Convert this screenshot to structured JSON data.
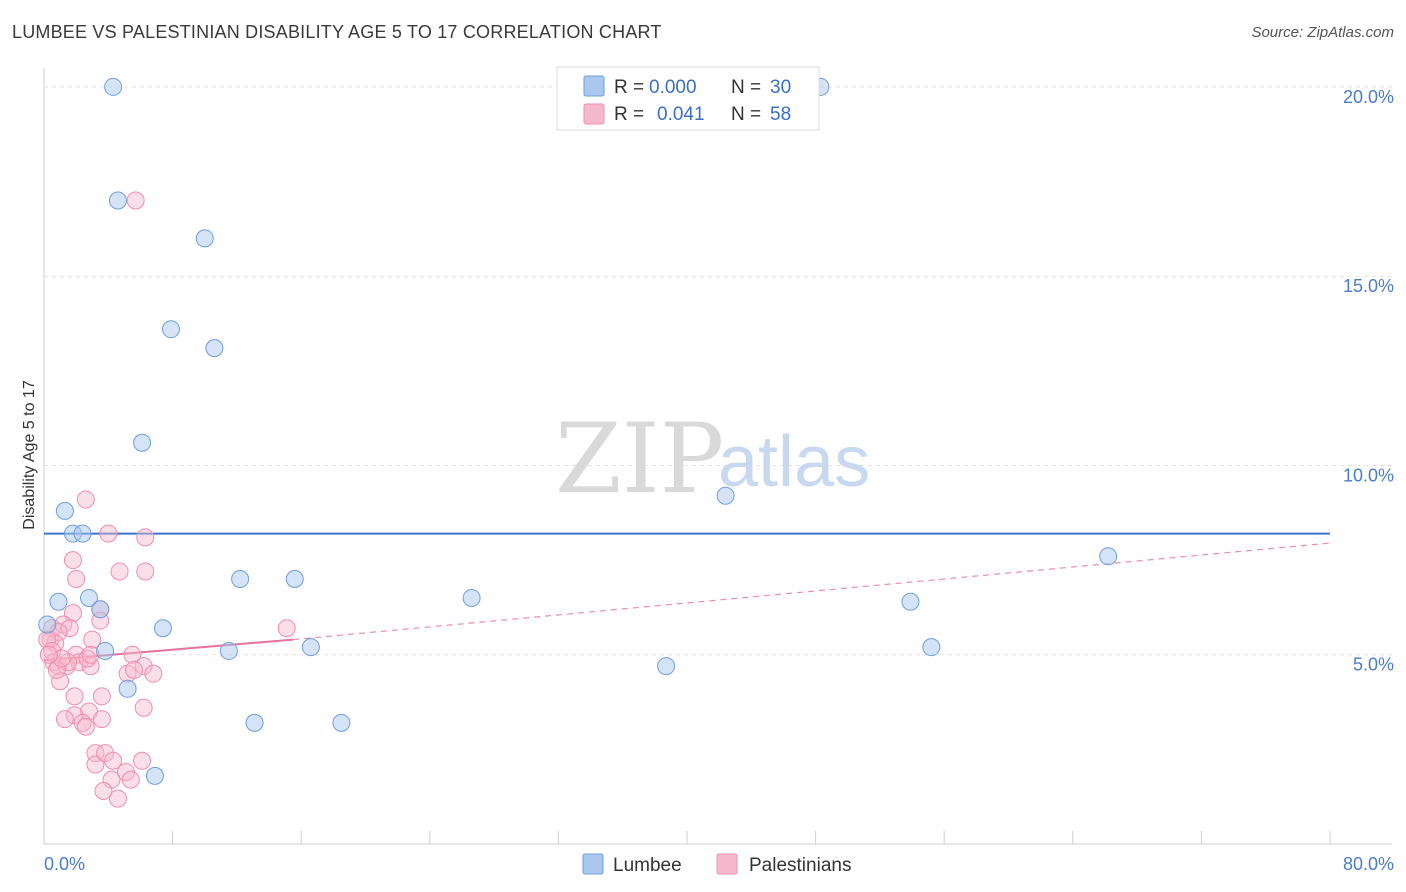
{
  "header": {
    "title": "LUMBEE VS PALESTINIAN DISABILITY AGE 5 TO 17 CORRELATION CHART",
    "source": "Source: ZipAtlas.com"
  },
  "watermark": {
    "zip": "ZIP",
    "atlas": "atlas"
  },
  "legend": {
    "rows": [
      {
        "r_label": "R =",
        "r_value": "0.000",
        "n_label": "N =",
        "n_value": "30",
        "color": "#aac8ee"
      },
      {
        "r_label": "R =",
        "r_value": "0.041",
        "n_label": "N =",
        "n_value": "58",
        "color": "#f6b8cc"
      }
    ]
  },
  "bottom_legend": {
    "items": [
      {
        "label": "Lumbee",
        "color": "#aac8ee"
      },
      {
        "label": "Palestinians",
        "color": "#f6b8cc"
      }
    ]
  },
  "chart_data": {
    "type": "scatter",
    "title": "LUMBEE VS PALESTINIAN DISABILITY AGE 5 TO 17 CORRELATION CHART",
    "xlabel": "",
    "ylabel": "Disability Age 5 to 17",
    "xlim": [
      0,
      80
    ],
    "ylim": [
      0,
      20.5
    ],
    "x_tick_labels": [
      {
        "value": 0,
        "label": "0.0%"
      },
      {
        "value": 80,
        "label": "80.0%"
      }
    ],
    "y_tick_labels": [
      {
        "value": 5,
        "label": "5.0%"
      },
      {
        "value": 10,
        "label": "10.0%"
      },
      {
        "value": 15,
        "label": "15.0%"
      },
      {
        "value": 20,
        "label": "20.0%"
      }
    ],
    "grid": true,
    "colors": {
      "lumbee_fill": "#aac8ee",
      "lumbee_stroke": "#6f9fdc",
      "lumbee_line": "#3b74c6",
      "pal_fill": "#f6b8cc",
      "pal_stroke": "#ee8fae",
      "pal_line": "#e8709a"
    },
    "series": [
      {
        "name": "Lumbee",
        "points": [
          [
            4.3,
            20.0
          ],
          [
            48.3,
            20.0
          ],
          [
            4.6,
            17.0
          ],
          [
            10.0,
            16.0
          ],
          [
            7.9,
            13.6
          ],
          [
            10.6,
            13.1
          ],
          [
            6.1,
            10.6
          ],
          [
            1.3,
            8.8
          ],
          [
            42.4,
            9.2
          ],
          [
            1.8,
            8.2
          ],
          [
            2.4,
            8.2
          ],
          [
            66.2,
            7.6
          ],
          [
            12.2,
            7.0
          ],
          [
            15.6,
            7.0
          ],
          [
            0.9,
            6.4
          ],
          [
            2.8,
            6.5
          ],
          [
            3.5,
            6.2
          ],
          [
            26.6,
            6.5
          ],
          [
            53.9,
            6.4
          ],
          [
            7.4,
            5.7
          ],
          [
            0.2,
            5.8
          ],
          [
            3.8,
            5.1
          ],
          [
            11.5,
            5.1
          ],
          [
            16.6,
            5.2
          ],
          [
            55.2,
            5.2
          ],
          [
            38.7,
            4.7
          ],
          [
            5.2,
            4.1
          ],
          [
            13.1,
            3.2
          ],
          [
            18.5,
            3.2
          ],
          [
            6.9,
            1.8
          ]
        ],
        "trend": [
          [
            0,
            8.2
          ],
          [
            80,
            8.2
          ]
        ]
      },
      {
        "name": "Palestinians",
        "points": [
          [
            5.7,
            17.0
          ],
          [
            2.6,
            9.1
          ],
          [
            4.0,
            8.2
          ],
          [
            6.3,
            8.1
          ],
          [
            1.8,
            7.5
          ],
          [
            4.7,
            7.2
          ],
          [
            6.3,
            7.2
          ],
          [
            2.0,
            7.0
          ],
          [
            3.5,
            6.2
          ],
          [
            1.8,
            6.1
          ],
          [
            3.5,
            5.9
          ],
          [
            0.5,
            5.7
          ],
          [
            1.2,
            5.8
          ],
          [
            0.4,
            5.4
          ],
          [
            1.6,
            5.7
          ],
          [
            0.9,
            5.6
          ],
          [
            0.7,
            5.3
          ],
          [
            0.2,
            5.4
          ],
          [
            0.5,
            5.1
          ],
          [
            2.0,
            5.0
          ],
          [
            3.0,
            5.4
          ],
          [
            15.1,
            5.7
          ],
          [
            0.6,
            4.8
          ],
          [
            0.9,
            4.7
          ],
          [
            1.4,
            4.7
          ],
          [
            2.2,
            4.8
          ],
          [
            2.9,
            4.7
          ],
          [
            2.7,
            4.9
          ],
          [
            5.5,
            5.0
          ],
          [
            6.2,
            4.7
          ],
          [
            6.8,
            4.5
          ],
          [
            5.2,
            4.5
          ],
          [
            1.0,
            4.3
          ],
          [
            1.5,
            4.8
          ],
          [
            0.8,
            4.6
          ],
          [
            1.9,
            3.9
          ],
          [
            3.6,
            3.9
          ],
          [
            5.6,
            4.6
          ],
          [
            2.8,
            3.5
          ],
          [
            1.9,
            3.4
          ],
          [
            3.6,
            3.3
          ],
          [
            6.2,
            3.6
          ],
          [
            1.3,
            3.3
          ],
          [
            2.4,
            3.2
          ],
          [
            2.6,
            3.1
          ],
          [
            3.2,
            2.4
          ],
          [
            3.2,
            2.1
          ],
          [
            3.8,
            2.4
          ],
          [
            4.3,
            2.2
          ],
          [
            6.1,
            2.2
          ],
          [
            5.1,
            1.9
          ],
          [
            4.2,
            1.7
          ],
          [
            5.4,
            1.7
          ],
          [
            3.7,
            1.4
          ],
          [
            4.6,
            1.2
          ],
          [
            1.1,
            4.9
          ],
          [
            2.9,
            5.0
          ],
          [
            0.3,
            5.0
          ]
        ],
        "trend_solid": [
          [
            0,
            4.85
          ],
          [
            15.5,
            5.4
          ]
        ],
        "trend_dashed": [
          [
            15.5,
            5.4
          ],
          [
            80,
            7.95
          ]
        ]
      }
    ]
  }
}
